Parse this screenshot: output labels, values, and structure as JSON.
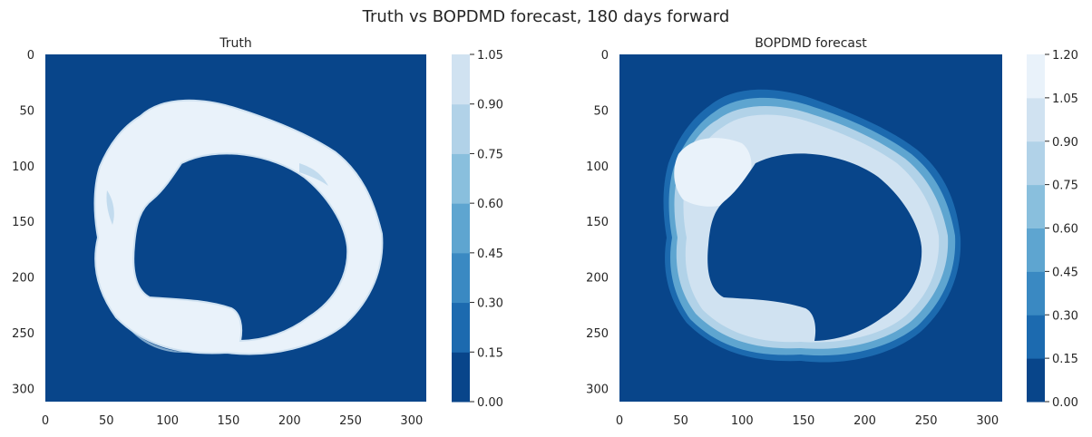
{
  "figure": {
    "title": "Truth vs BOPDMD forecast, 180 days forward"
  },
  "chart_data": [
    {
      "type": "heatmap",
      "title": "Truth",
      "xlabel": "",
      "ylabel": "",
      "x_ticks": [
        0,
        50,
        100,
        150,
        200,
        250,
        300
      ],
      "y_ticks": [
        0,
        50,
        100,
        150,
        200,
        250,
        300
      ],
      "xlim": [
        0,
        312
      ],
      "ylim": [
        312,
        0
      ],
      "grid": false,
      "colormap": "Blues_r",
      "colorbar": {
        "levels": [
          "0.00",
          "0.15",
          "0.30",
          "0.45",
          "0.60",
          "0.75",
          "0.90",
          "1.05"
        ],
        "range": [
          0,
          1.05
        ]
      },
      "description_values": {
        "ocean_value": 0.0,
        "continent_value": 0.0,
        "ice_ring_value": 1.0,
        "ring_center": [
          160,
          168
        ],
        "ring_inner_radius": 85,
        "ring_outer_radius": 115
      }
    },
    {
      "type": "heatmap",
      "title": "BOPDMD forecast",
      "xlabel": "",
      "ylabel": "",
      "x_ticks": [
        0,
        50,
        100,
        150,
        200,
        250,
        300
      ],
      "y_ticks": [
        0,
        50,
        100,
        150,
        200,
        250,
        300
      ],
      "xlim": [
        0,
        312
      ],
      "ylim": [
        312,
        0
      ],
      "grid": false,
      "colormap": "Blues_r",
      "colorbar": {
        "levels": [
          "0.00",
          "0.15",
          "0.30",
          "0.45",
          "0.60",
          "0.75",
          "0.90",
          "1.05",
          "1.20"
        ],
        "range": [
          0,
          1.2
        ]
      },
      "description_values": {
        "ocean_value": 0.0,
        "continent_value": 0.0,
        "ice_ring_value": 0.95,
        "ring_center": [
          160,
          168
        ],
        "ring_inner_radius": 85,
        "ring_outer_radius": 118
      }
    }
  ],
  "palette": {
    "blues": [
      "#08458a",
      "#1c6aaf",
      "#3a89c2",
      "#5ea5d0",
      "#89bfdd",
      "#b1d2e8",
      "#d0e2f1",
      "#e9f2fa"
    ]
  }
}
